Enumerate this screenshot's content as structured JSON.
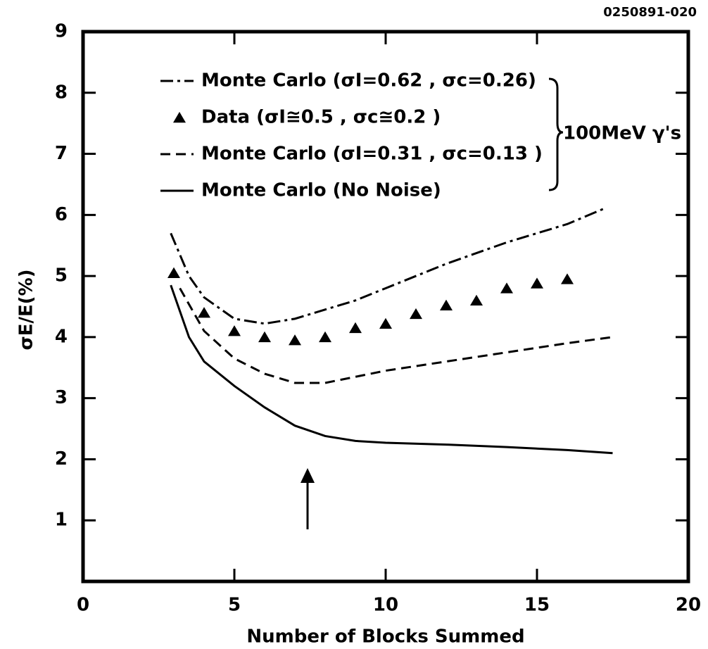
{
  "chart_data": {
    "type": "line",
    "figure_id": "0250891-020",
    "xlabel": "Number of Blocks Summed",
    "ylabel": "σE/E(%)",
    "annotation": "100MeV γ's",
    "xlim": [
      0,
      20
    ],
    "xticks": [
      0,
      5,
      10,
      15,
      20
    ],
    "ylim": [
      0,
      9
    ],
    "yticks": [
      1,
      2,
      3,
      4,
      5,
      6,
      7,
      8,
      9
    ],
    "legend": "upper center",
    "series": [
      {
        "name": "Monte Carlo (σI=0.62 , σc=0.26)",
        "color": "#000000",
        "style": "dashdot",
        "x": [
          2.9,
          3.5,
          4,
          5,
          6,
          7,
          8,
          9,
          10,
          12,
          14,
          16,
          17.2
        ],
        "values": [
          5.7,
          5.0,
          4.65,
          4.3,
          4.22,
          4.3,
          4.45,
          4.6,
          4.8,
          5.2,
          5.55,
          5.85,
          6.1
        ]
      },
      {
        "name": "Data (σI≅0.5 , σc≅0.2 )",
        "color": "#000000",
        "style": "marker",
        "x": [
          3,
          4,
          5,
          6,
          7,
          8,
          9,
          10,
          11,
          12,
          13,
          14,
          15,
          16
        ],
        "values": [
          5.05,
          4.4,
          4.1,
          4.0,
          3.95,
          4.0,
          4.15,
          4.22,
          4.38,
          4.52,
          4.6,
          4.8,
          4.88,
          4.95
        ]
      },
      {
        "name": "Monte Carlo (σI=0.31 , σc=0.13 )",
        "color": "#000000",
        "style": "dashed",
        "x": [
          3.2,
          4,
          5,
          6,
          7,
          8,
          9,
          10,
          12,
          14,
          16,
          17.5
        ],
        "values": [
          4.8,
          4.1,
          3.65,
          3.4,
          3.25,
          3.25,
          3.35,
          3.45,
          3.6,
          3.75,
          3.9,
          4.0
        ]
      },
      {
        "name": "Monte Carlo (No Noise)",
        "color": "#000000",
        "style": "solid",
        "x": [
          2.9,
          3.5,
          4,
          5,
          6,
          7,
          8,
          9,
          10,
          12,
          14,
          16,
          17.5
        ],
        "values": [
          4.85,
          4.0,
          3.6,
          3.2,
          2.85,
          2.55,
          2.38,
          2.3,
          2.27,
          2.24,
          2.2,
          2.15,
          2.1
        ]
      }
    ]
  }
}
